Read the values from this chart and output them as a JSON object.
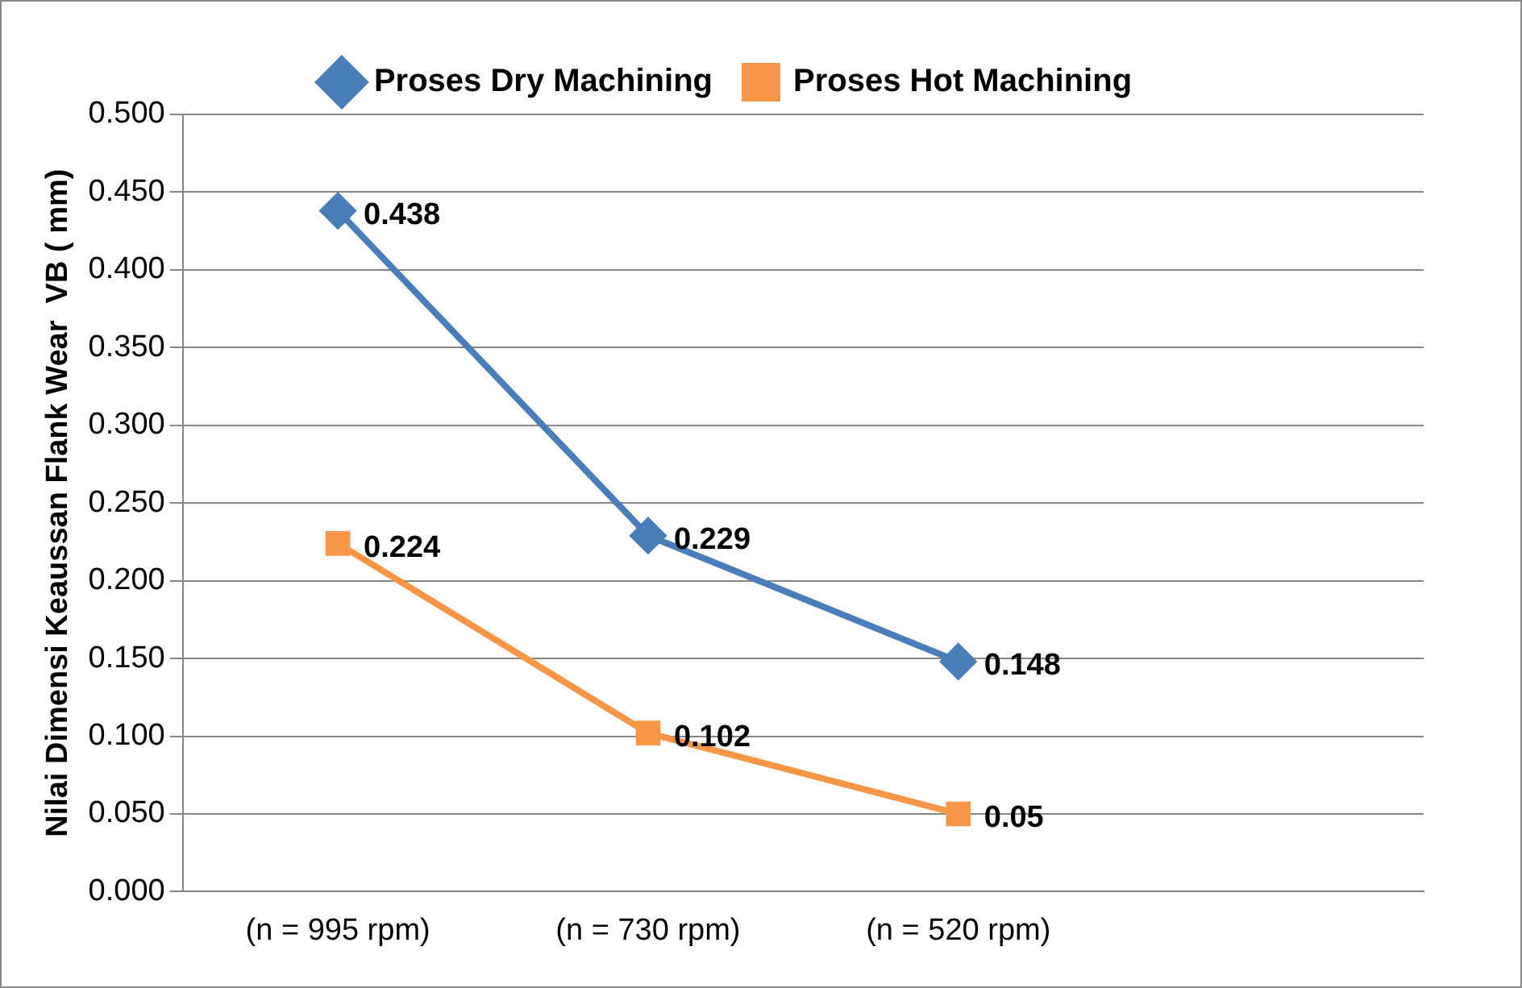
{
  "chart_data": {
    "type": "line",
    "ylabel": "Nilai Dimensi Keaussan Flank Wear  VB ( mm)",
    "categories": [
      "(n = 995 rpm)",
      "(n = 730 rpm)",
      "(n = 520 rpm)",
      null
    ],
    "series": [
      {
        "name": "Proses Dry Machining",
        "color": "#4a7ebb",
        "marker": "diamond",
        "values": [
          0.438,
          0.229,
          0.148,
          null
        ]
      },
      {
        "name": "Proses Hot Machining",
        "color": "#f79646",
        "marker": "square",
        "values": [
          0.224,
          0.102,
          0.05,
          null
        ]
      }
    ],
    "ylim": [
      0,
      0.5
    ],
    "yticks": [
      {
        "value": 0,
        "label": "0.000"
      },
      {
        "value": 0.05,
        "label": "0.050"
      },
      {
        "value": 0.1,
        "label": "0.100"
      },
      {
        "value": 0.15,
        "label": "0.150"
      },
      {
        "value": 0.2,
        "label": "0.200"
      },
      {
        "value": 0.25,
        "label": "0.250"
      },
      {
        "value": 0.3,
        "label": "0.300"
      },
      {
        "value": 0.35,
        "label": "0.350"
      },
      {
        "value": 0.4,
        "label": "0.400"
      },
      {
        "value": 0.45,
        "label": "0.450"
      },
      {
        "value": 0.5,
        "label": "0.500"
      }
    ],
    "grid": "y",
    "legend": "top",
    "data_labels": true
  }
}
